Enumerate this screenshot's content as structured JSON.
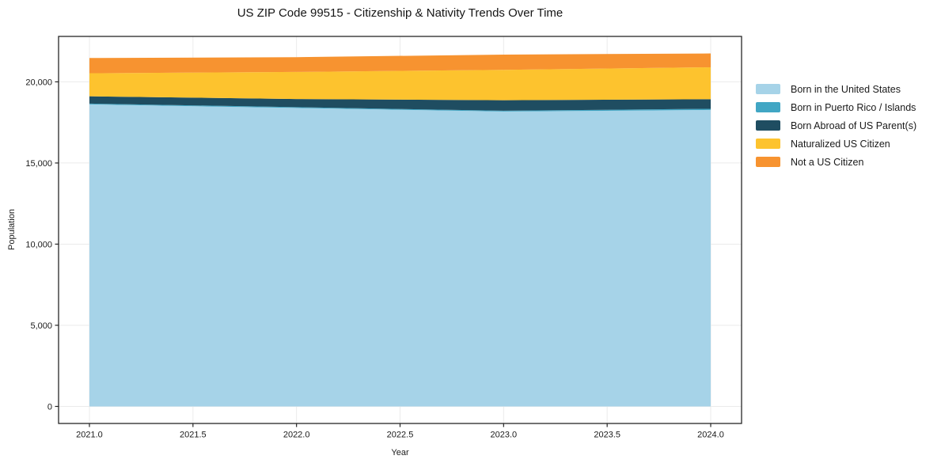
{
  "chart_data": {
    "type": "area",
    "stacked": true,
    "title": "US ZIP Code 99515 - Citizenship & Nativity Trends Over Time",
    "xlabel": "Year",
    "ylabel": "Population",
    "x": [
      2021,
      2022,
      2023,
      2024
    ],
    "series": [
      {
        "name": "Born in the United States",
        "color": "#A6D3E8",
        "values": [
          18610,
          18390,
          18170,
          18270
        ]
      },
      {
        "name": "Born in Puerto Rico / Islands",
        "color": "#41A6C4",
        "values": [
          50,
          50,
          50,
          70
        ]
      },
      {
        "name": "Born Abroad of US Parent(s)",
        "color": "#1F4D61",
        "values": [
          450,
          500,
          650,
          590
        ]
      },
      {
        "name": "Naturalized US Citizen",
        "color": "#FDC32E",
        "values": [
          1420,
          1670,
          1870,
          1970
        ]
      },
      {
        "name": "Not a US Citizen",
        "color": "#F79330",
        "values": [
          940,
          910,
          940,
          850
        ]
      }
    ],
    "totals": [
      21470,
      21520,
      21680,
      21750
    ],
    "x_ticks": [
      2021.0,
      2021.5,
      2022.0,
      2022.5,
      2023.0,
      2023.5,
      2024.0
    ],
    "x_tick_labels": [
      "2021.0",
      "2021.5",
      "2022.0",
      "2022.5",
      "2023.0",
      "2023.5",
      "2024.0"
    ],
    "y_ticks": [
      0,
      5000,
      10000,
      15000,
      20000
    ],
    "y_tick_labels": [
      "0",
      "5,000",
      "10,000",
      "15,000",
      "20,000"
    ],
    "x_range": [
      2020.851,
      2024.149
    ],
    "y_range": [
      -1050,
      22800
    ],
    "grid": true,
    "grid_color": "#ebebeb",
    "spine_color": "#262626",
    "background_color": "#ffffff",
    "legend_position": "right-outside"
  }
}
